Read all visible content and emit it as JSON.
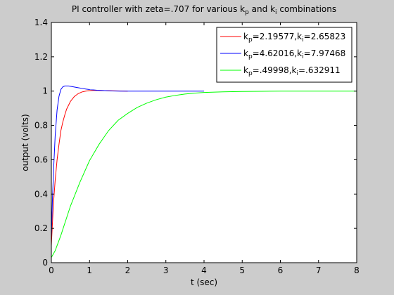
{
  "chart_data": {
    "type": "line",
    "title": "PI controller with zeta=.707 for various kₚ and kᵢ combinations",
    "title_parts": {
      "pre": "PI controller with zeta=.707 for various k",
      "sub1": "p",
      "mid": " and k",
      "sub2": "i",
      "post": " combinations"
    },
    "xlabel": "t (sec)",
    "ylabel": "output (volts)",
    "xlim": [
      0,
      8
    ],
    "ylim": [
      0,
      1.4
    ],
    "xticks": [
      "0",
      "1",
      "2",
      "3",
      "4",
      "5",
      "6",
      "7",
      "8"
    ],
    "yticks": [
      "0",
      "0.2",
      "0.4",
      "0.6",
      "0.8",
      "1",
      "1.2",
      "1.4"
    ],
    "grid": false,
    "legend_position": "top-right",
    "series": [
      {
        "legend": {
          "k1": "k",
          "s1": "p",
          "v1": "=2.19577,k",
          "s2": "i",
          "v2": "=2.65823"
        },
        "color": "#ff0000",
        "x": [
          0,
          0.05,
          0.1,
          0.15,
          0.2,
          0.25,
          0.3,
          0.35,
          0.4,
          0.5,
          0.6,
          0.7,
          0.8,
          0.9,
          1.0,
          1.1,
          1.2,
          1.4,
          1.6,
          1.8,
          2.0
        ],
        "y": [
          0.1,
          0.33,
          0.48,
          0.6,
          0.69,
          0.77,
          0.82,
          0.86,
          0.895,
          0.94,
          0.968,
          0.985,
          0.995,
          1.0,
          1.003,
          1.004,
          1.004,
          1.003,
          1.002,
          1.001,
          1.0
        ]
      },
      {
        "legend": {
          "k1": "k",
          "s1": "p",
          "v1": "=4.62016,k",
          "s2": "i",
          "v2": "=7.97468"
        },
        "color": "#0000ff",
        "x": [
          0,
          0.03,
          0.06,
          0.1,
          0.15,
          0.2,
          0.25,
          0.3,
          0.35,
          0.4,
          0.45,
          0.5,
          0.55,
          0.6,
          0.7,
          0.8,
          0.9,
          1.0,
          1.2,
          1.4,
          1.6,
          1.8,
          2.0,
          2.5,
          3.0,
          3.5,
          4.0
        ],
        "y": [
          0.15,
          0.38,
          0.55,
          0.74,
          0.89,
          0.97,
          1.01,
          1.025,
          1.03,
          1.03,
          1.03,
          1.028,
          1.026,
          1.024,
          1.02,
          1.016,
          1.012,
          1.009,
          1.005,
          1.003,
          1.001,
          1.0,
          1.0,
          1.0,
          1.0,
          1.0,
          1.0
        ]
      },
      {
        "legend": {
          "k1": "k",
          "s1": "p",
          "v1": "=.49998,k",
          "s2": "i",
          "v2": "=.632911"
        },
        "color": "#00ff00",
        "x": [
          0,
          0.1,
          0.25,
          0.5,
          0.75,
          1.0,
          1.25,
          1.5,
          1.75,
          2.0,
          2.25,
          2.5,
          2.75,
          3.0,
          3.25,
          3.5,
          3.75,
          4.0,
          4.5,
          5.0,
          5.5,
          6.0,
          7.0,
          8.0
        ],
        "y": [
          0.03,
          0.07,
          0.16,
          0.33,
          0.47,
          0.595,
          0.69,
          0.77,
          0.83,
          0.87,
          0.905,
          0.93,
          0.95,
          0.965,
          0.975,
          0.983,
          0.988,
          0.992,
          0.996,
          0.998,
          0.999,
          1.0,
          1.0,
          1.0
        ]
      }
    ]
  }
}
